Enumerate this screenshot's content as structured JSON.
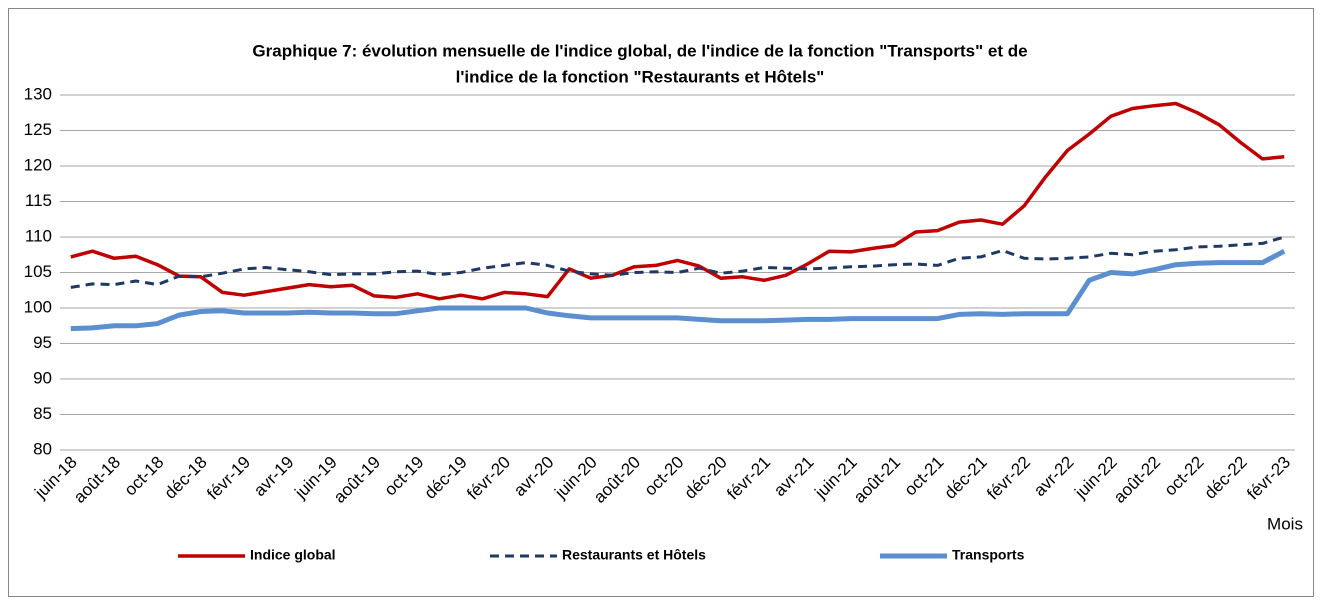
{
  "chart_data": {
    "type": "line",
    "title": [
      "Graphique 7: évolution mensuelle de l'indice global, de l'indice de la fonction \"Transports\" et de",
      "l'indice de la fonction \"Restaurants et Hôtels\""
    ],
    "x_label": "Mois",
    "categories": [
      "juin-18",
      null,
      "août-18",
      null,
      "oct-18",
      null,
      "déc-18",
      null,
      "févr-19",
      null,
      "avr-19",
      null,
      "juin-19",
      null,
      "août-19",
      null,
      "oct-19",
      null,
      "déc-19",
      null,
      "févr-20",
      null,
      "avr-20",
      null,
      "juin-20",
      null,
      "août-20",
      null,
      "oct-20",
      null,
      "déc-20",
      null,
      "févr-21",
      null,
      "avr-21",
      null,
      "juin-21",
      null,
      "août-21",
      null,
      "oct-21",
      null,
      "déc-21",
      null,
      "févr-22",
      null,
      "avr-22",
      null,
      "juin-22",
      null,
      "août-22",
      null,
      "oct-22",
      null,
      "déc-22",
      null,
      "févr-23"
    ],
    "series": [
      {
        "name": "Indice global",
        "color": "#c00000",
        "dash": "solid",
        "width": 3.5,
        "values": [
          107.2,
          108.0,
          107.0,
          107.3,
          106.1,
          104.5,
          104.4,
          102.2,
          101.8,
          102.3,
          102.8,
          103.3,
          103.0,
          103.2,
          101.7,
          101.5,
          102.0,
          101.3,
          101.8,
          101.3,
          102.2,
          102.0,
          101.6,
          105.5,
          104.2,
          104.6,
          105.8,
          106.0,
          106.7,
          105.9,
          104.2,
          104.4,
          103.9,
          104.6,
          106.2,
          108.0,
          107.9,
          108.4,
          108.8,
          110.7,
          110.9,
          112.1,
          112.4,
          111.8,
          114.4,
          118.5,
          122.2,
          124.5,
          127.0,
          128.1,
          128.5,
          128.8,
          127.5,
          125.8,
          123.3,
          121.0,
          121.3
        ]
      },
      {
        "name": "Restaurants et Hôtels",
        "color": "#1f3864",
        "dash": "dashed",
        "width": 3,
        "values": [
          102.9,
          103.4,
          103.3,
          103.8,
          103.3,
          104.5,
          104.4,
          104.9,
          105.5,
          105.7,
          105.4,
          105.1,
          104.7,
          104.8,
          104.8,
          105.1,
          105.2,
          104.7,
          105.0,
          105.6,
          106.0,
          106.4,
          106.0,
          105.2,
          104.8,
          104.6,
          105.0,
          105.1,
          105.0,
          105.6,
          104.9,
          105.2,
          105.7,
          105.6,
          105.5,
          105.6,
          105.8,
          105.9,
          106.1,
          106.2,
          106.0,
          107.0,
          107.2,
          108.1,
          107.0,
          106.9,
          107.0,
          107.2,
          107.7,
          107.5,
          108.0,
          108.2,
          108.6,
          108.7,
          108.9,
          109.1,
          110.0
        ]
      },
      {
        "name": "Transports",
        "color": "#5b8fd0",
        "dash": "solid",
        "width": 5,
        "values": [
          97.1,
          97.2,
          97.5,
          97.5,
          97.8,
          99.0,
          99.5,
          99.6,
          99.3,
          99.3,
          99.3,
          99.4,
          99.3,
          99.3,
          99.2,
          99.2,
          99.6,
          100.0,
          100.0,
          100.0,
          100.0,
          100.0,
          99.3,
          98.9,
          98.6,
          98.6,
          98.6,
          98.6,
          98.6,
          98.4,
          98.2,
          98.2,
          98.2,
          98.3,
          98.4,
          98.4,
          98.5,
          98.5,
          98.5,
          98.5,
          98.5,
          99.1,
          99.2,
          99.1,
          99.2,
          99.2,
          99.2,
          103.9,
          105.0,
          104.8,
          105.4,
          106.1,
          106.3,
          106.4,
          106.4,
          106.4,
          108.0
        ]
      }
    ],
    "ylim": [
      80,
      130
    ],
    "yticks": [
      80,
      85,
      90,
      95,
      100,
      105,
      110,
      115,
      120,
      125,
      130
    ],
    "grid": true,
    "legend": "bottom"
  }
}
